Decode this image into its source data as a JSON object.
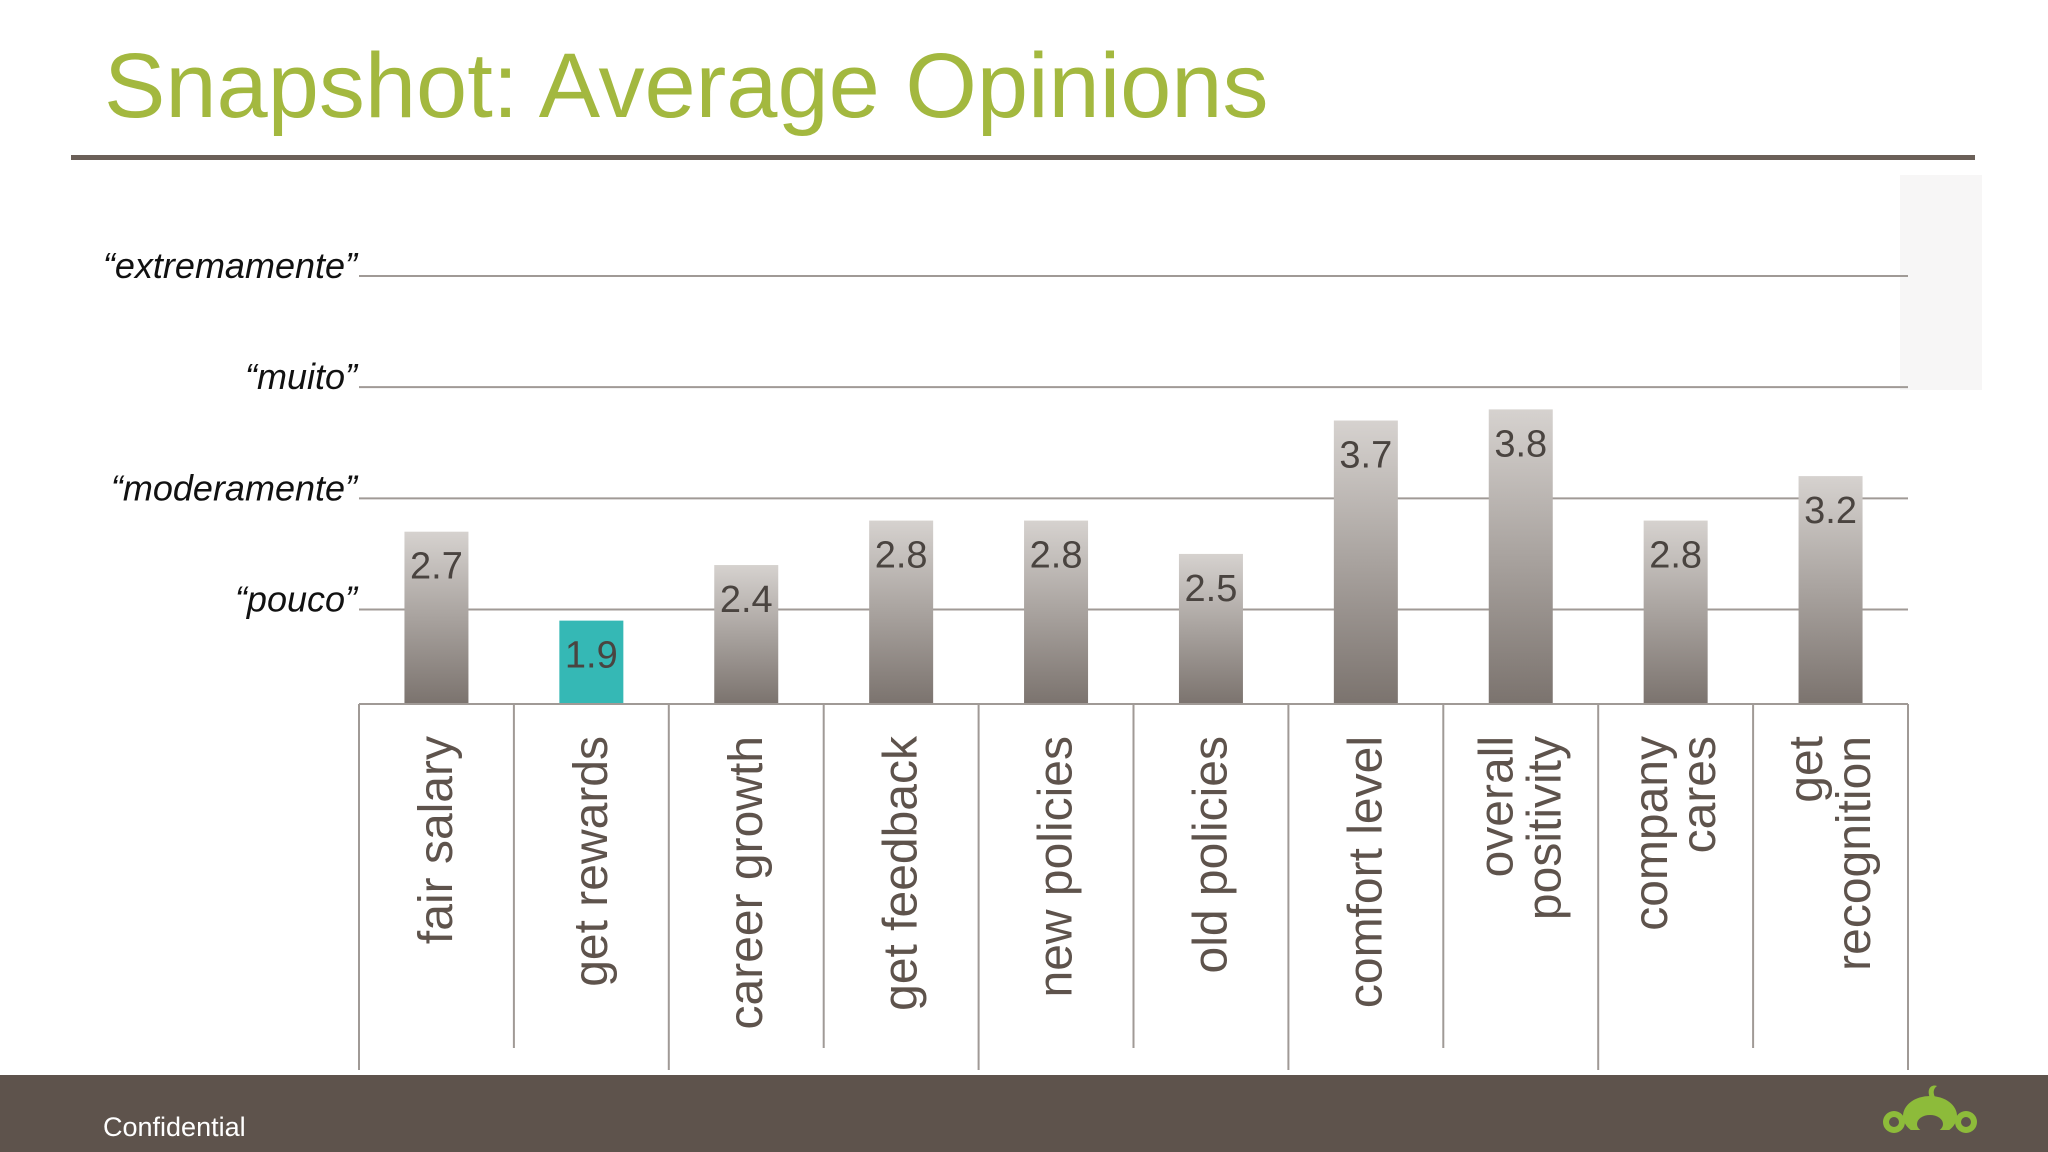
{
  "slide": {
    "title": "Snapshot: Average Opinions",
    "footer_text": "Confidential"
  },
  "colors": {
    "title": "#a3b83f",
    "bar_top": "#d6d2cf",
    "bar_bottom": "#7b736e",
    "highlight_bar": "#35b8b5",
    "footer": "#5e534c",
    "logo": "#8dbb3a"
  },
  "icons": {
    "logo": "monkey-logo-icon"
  },
  "chart_data": {
    "type": "bar",
    "title": "Snapshot: Average Opinions",
    "categories": [
      [
        "fair salary"
      ],
      [
        "get rewards"
      ],
      [
        "career growth"
      ],
      [
        "get feedback"
      ],
      [
        "new policies"
      ],
      [
        "old policies"
      ],
      [
        "comfort level"
      ],
      [
        "overall",
        "positivity"
      ],
      [
        "company",
        "cares"
      ],
      [
        "get",
        "recognition"
      ]
    ],
    "values": [
      2.7,
      1.9,
      2.4,
      2.8,
      2.8,
      2.5,
      3.7,
      3.8,
      2.8,
      3.2
    ],
    "value_labels": [
      "2.7",
      "1.9",
      "2.4",
      "2.8",
      "2.8",
      "2.5",
      "3.7",
      "3.8",
      "2.8",
      "3.2"
    ],
    "highlight_index": 1,
    "ylim": [
      1.15,
      5
    ],
    "yticks": [
      {
        "value": 2,
        "label": "“pouco”"
      },
      {
        "value": 3,
        "label": "“moderamente”"
      },
      {
        "value": 4,
        "label": "“muito”"
      },
      {
        "value": 5,
        "label": "“extremamente”"
      }
    ],
    "grid": true,
    "legend": "none"
  }
}
